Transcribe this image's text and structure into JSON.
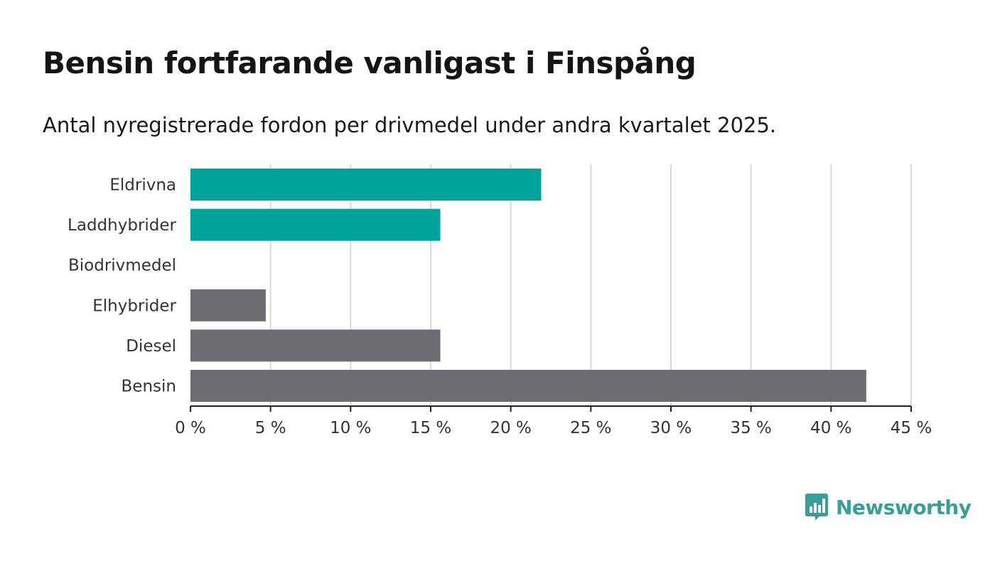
{
  "chart_data": {
    "type": "bar",
    "orientation": "horizontal",
    "title": "Bensin fortfarande vanligast i Finspång",
    "subtitle": "Antal nyregistrerade fordon per drivmedel under andra kvartalet 2025.",
    "categories": [
      "Eldrivna",
      "Laddhybrider",
      "Biodrivmedel",
      "Elhybrider",
      "Diesel",
      "Bensin"
    ],
    "values": [
      21.9,
      15.6,
      0,
      4.7,
      15.6,
      42.2
    ],
    "bar_colors": [
      "#00a39a",
      "#00a39a",
      "#6d6c72",
      "#6d6c72",
      "#6d6c72",
      "#6d6c72"
    ],
    "xlim": [
      0,
      45
    ],
    "x_ticks": [
      0,
      5,
      10,
      15,
      20,
      25,
      30,
      35,
      40,
      45
    ],
    "x_tick_labels": [
      "0 %",
      "5 %",
      "10 %",
      "15 %",
      "20 %",
      "25 %",
      "30 %",
      "35 %",
      "40 %",
      "45 %"
    ],
    "grid": "vertical",
    "legend": "none"
  },
  "brand": {
    "name": "Newsworthy",
    "color": "#3a9d97",
    "icon": "bar-chart-speech-bubble-icon"
  }
}
